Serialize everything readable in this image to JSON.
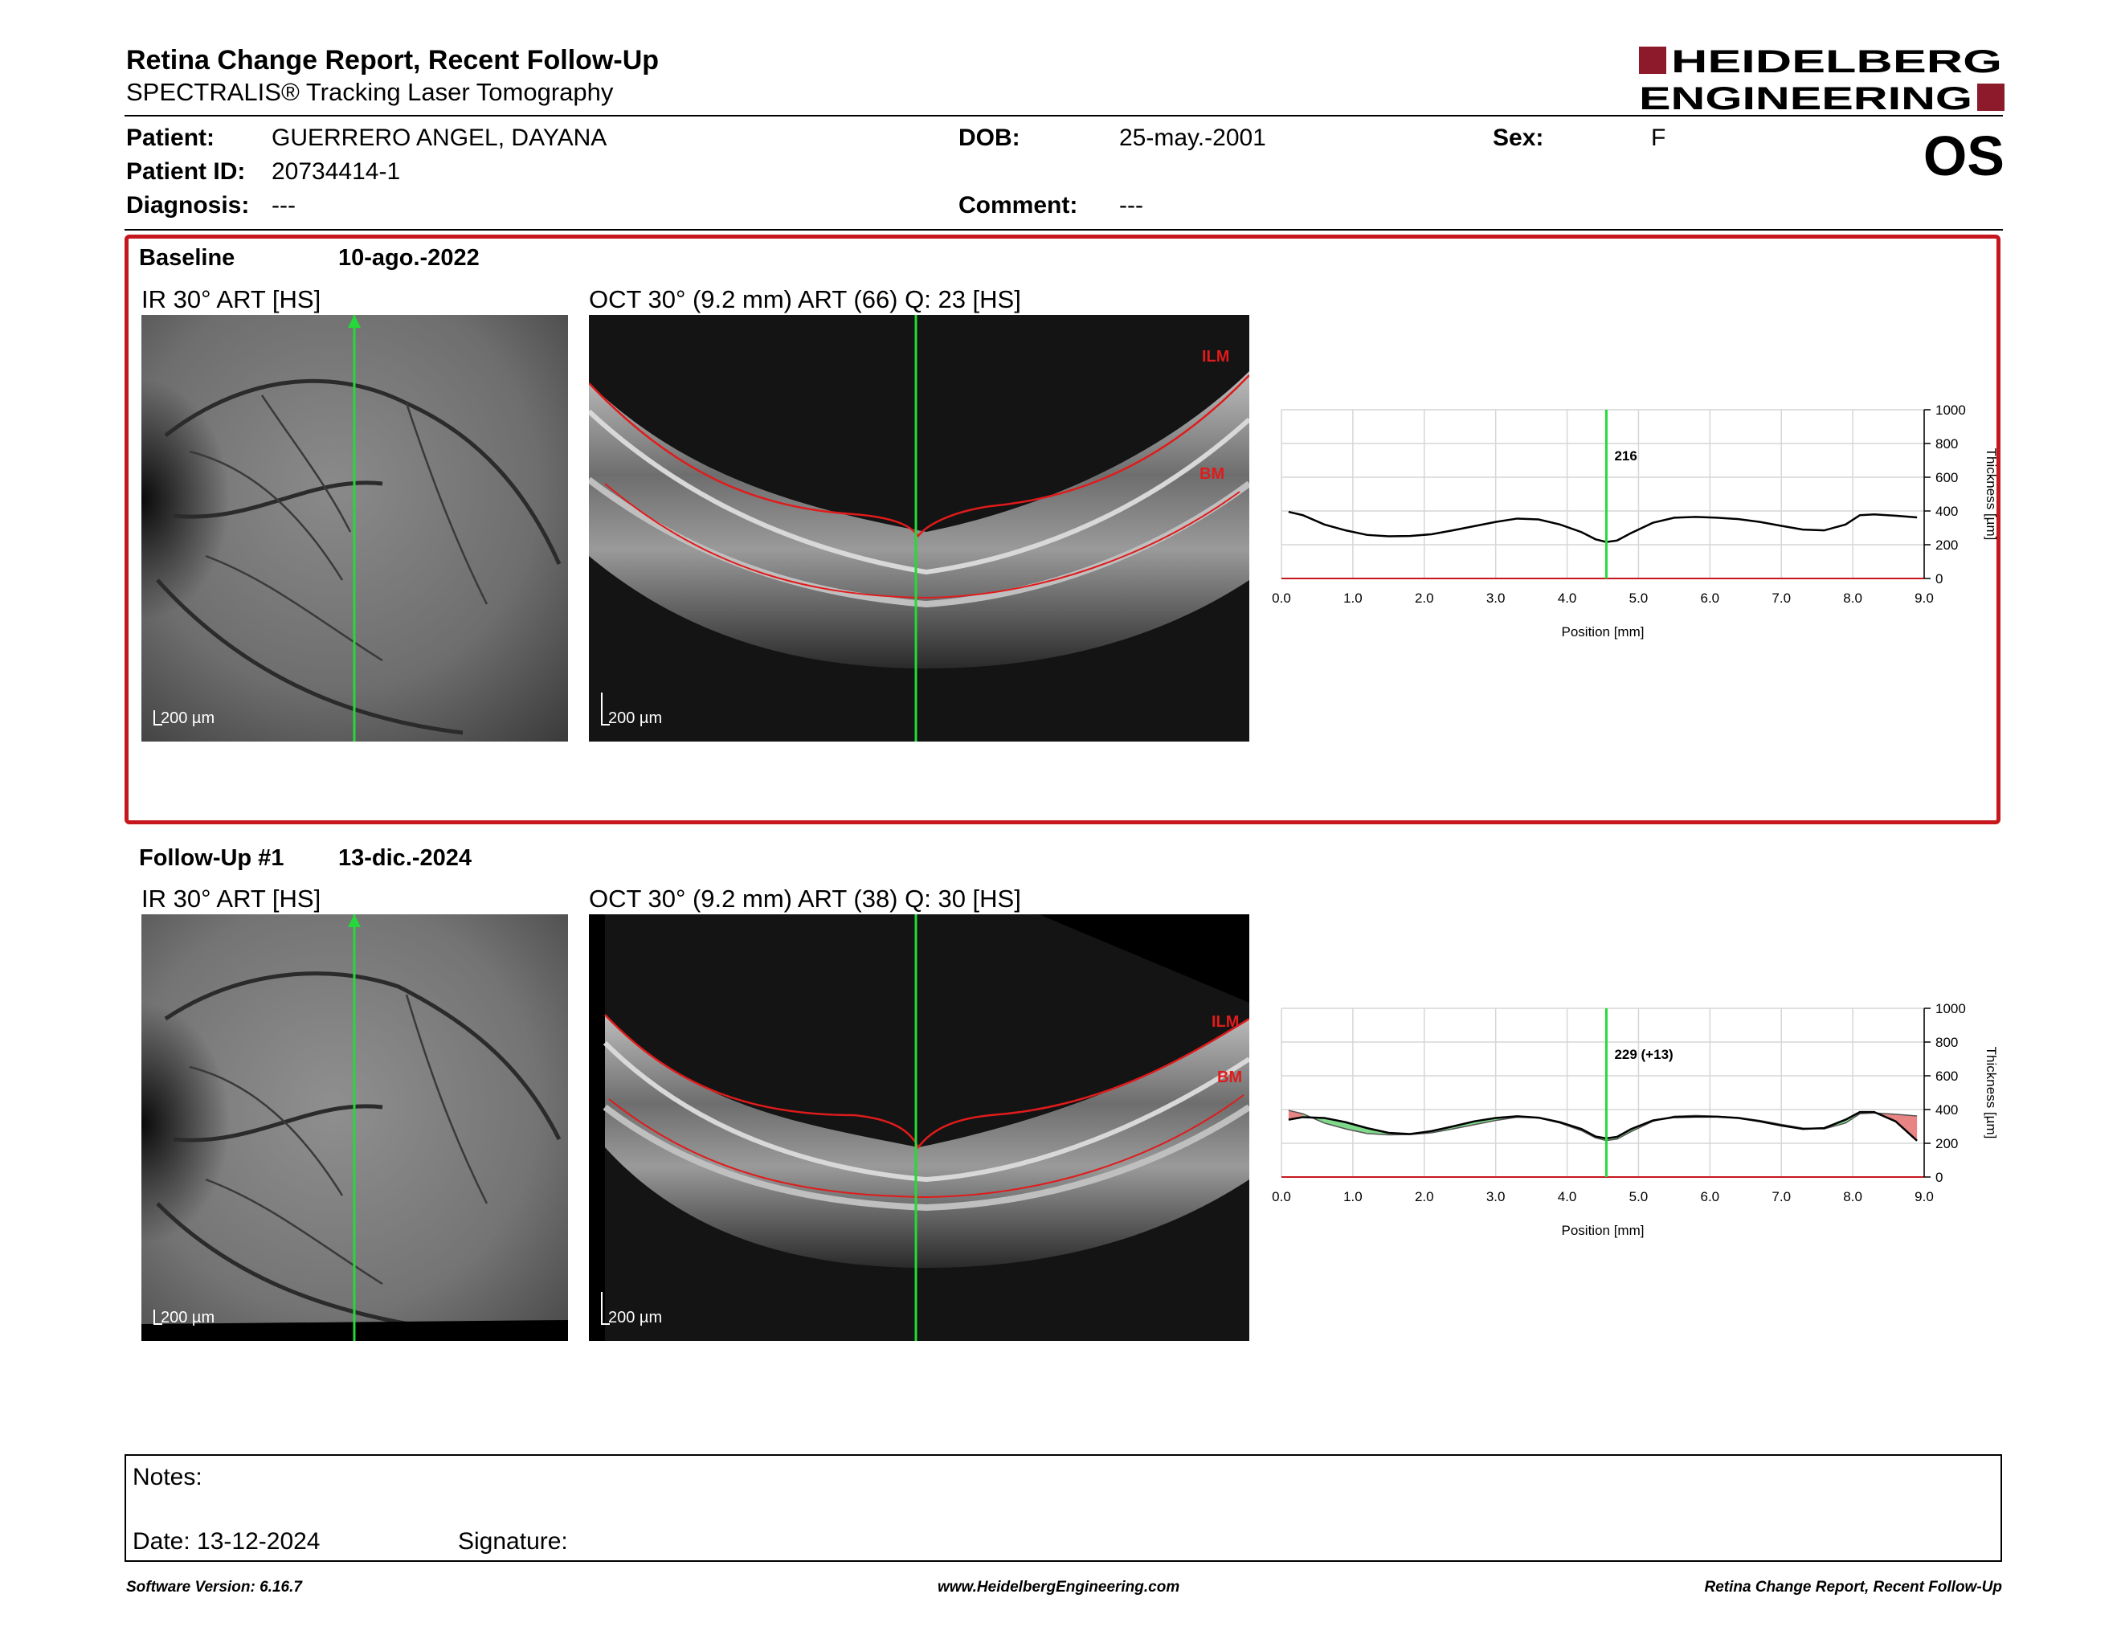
{
  "header": {
    "title": "Retina Change Report, Recent Follow-Up",
    "subtitle": "SPECTRALIS® Tracking Laser Tomography",
    "logo_line1": "HEIDELBERG",
    "logo_line2": "ENGINEERING",
    "eye": "OS"
  },
  "patient": {
    "patient_label": "Patient:",
    "patient_value": "GUERRERO ANGEL, DAYANA",
    "id_label": "Patient ID:",
    "id_value": "20734414-1",
    "diagnosis_label": "Diagnosis:",
    "diagnosis_value": "---",
    "dob_label": "DOB:",
    "dob_value": "25-may.-2001",
    "comment_label": "Comment:",
    "comment_value": "---",
    "sex_label": "Sex:",
    "sex_value": "F"
  },
  "baseline": {
    "label": "Baseline",
    "date": "10-ago.-2022",
    "ir_caption": "IR 30° ART [HS]",
    "oct_caption": "OCT 30° (9.2 mm) ART (66) Q: 23 [HS]",
    "scale": "200 µm",
    "ilm": "ILM",
    "bm": "BM",
    "marker_value": "216"
  },
  "followup": {
    "label": "Follow-Up #1",
    "date": "13-dic.-2024",
    "ir_caption": "IR 30° ART [HS]",
    "oct_caption": "OCT 30° (9.2 mm) ART (38) Q: 30 [HS]",
    "scale": "200 µm",
    "ilm": "ILM",
    "bm": "BM",
    "marker_value": "229 (+13)"
  },
  "chart_axes": {
    "x_ticks": [
      "0.0",
      "1.0",
      "2.0",
      "3.0",
      "4.0",
      "5.0",
      "6.0",
      "7.0",
      "8.0",
      "9.0"
    ],
    "y_ticks": [
      "1000",
      "800",
      "600",
      "400",
      "200",
      "0"
    ],
    "xlabel": "Position [mm]",
    "ylabel": "Thickness [µm]"
  },
  "chart_data": [
    {
      "type": "line",
      "title": "",
      "xlabel": "Position [mm]",
      "ylabel": "Thickness [µm]",
      "xlim": [
        0,
        9
      ],
      "ylim": [
        0,
        1000
      ],
      "marker_x": 4.55,
      "marker_label": "216",
      "series": [
        {
          "x": [
            0.1,
            0.3,
            0.6,
            0.9,
            1.2,
            1.5,
            1.8,
            2.1,
            2.4,
            2.7,
            3.0,
            3.3,
            3.6,
            3.9,
            4.2,
            4.4,
            4.55,
            4.7,
            4.9,
            5.2,
            5.5,
            5.8,
            6.1,
            6.4,
            6.7,
            7.0,
            7.3,
            7.6,
            7.9,
            8.1,
            8.3,
            8.6,
            8.9
          ],
          "y": [
            395,
            375,
            320,
            285,
            258,
            250,
            252,
            262,
            285,
            310,
            335,
            355,
            350,
            320,
            275,
            232,
            216,
            225,
            270,
            330,
            360,
            365,
            360,
            352,
            335,
            312,
            290,
            285,
            320,
            375,
            380,
            372,
            362
          ]
        }
      ]
    },
    {
      "type": "line",
      "title": "",
      "xlabel": "Position [mm]",
      "ylabel": "Thickness [µm]",
      "xlim": [
        0,
        9
      ],
      "ylim": [
        0,
        1000
      ],
      "marker_x": 4.55,
      "marker_label": "229 (+13)",
      "series": [
        {
          "x": [
            0.1,
            0.3,
            0.6,
            0.9,
            1.2,
            1.5,
            1.8,
            2.1,
            2.4,
            2.7,
            3.0,
            3.3,
            3.6,
            3.9,
            4.2,
            4.4,
            4.55,
            4.7,
            4.9,
            5.2,
            5.5,
            5.8,
            6.1,
            6.4,
            6.7,
            7.0,
            7.3,
            7.6,
            7.9,
            8.1,
            8.3,
            8.6,
            8.9
          ],
          "y": [
            340,
            355,
            350,
            325,
            290,
            262,
            255,
            272,
            300,
            330,
            350,
            360,
            352,
            325,
            285,
            240,
            229,
            238,
            285,
            335,
            355,
            358,
            358,
            350,
            330,
            305,
            285,
            290,
            340,
            385,
            385,
            330,
            215
          ]
        }
      ]
    }
  ],
  "notes": {
    "notes_label": "Notes:",
    "date_label": "Date: 13-12-2024",
    "signature_label": "Signature:"
  },
  "footer": {
    "version": "Software Version: 6.16.7",
    "url": "www.HeidelbergEngineering.com",
    "report": "Retina Change Report, Recent Follow-Up"
  }
}
